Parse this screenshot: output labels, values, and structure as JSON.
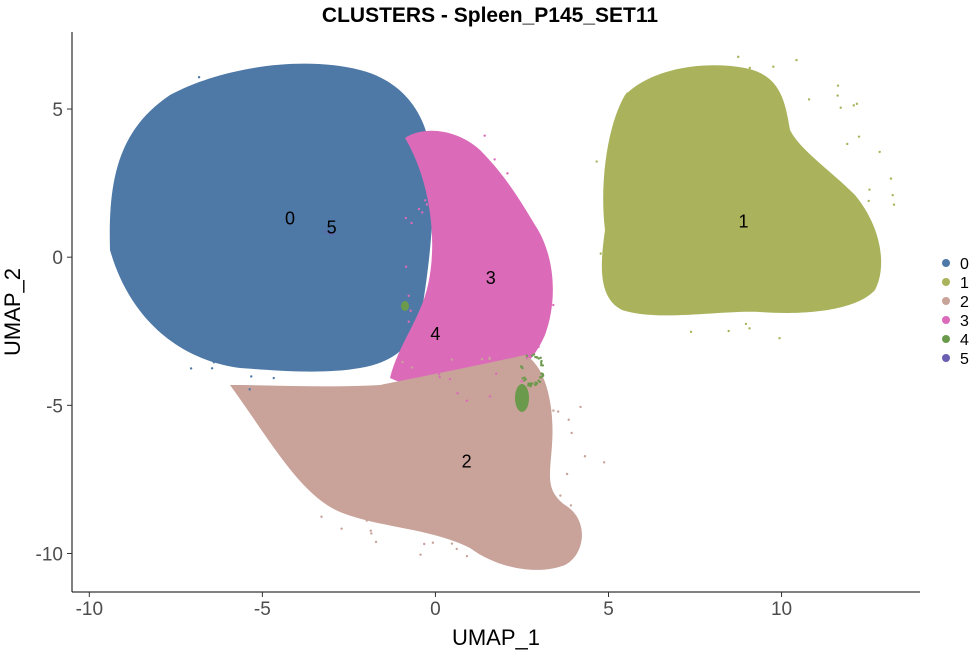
{
  "chart_data": {
    "type": "scatter",
    "title": "CLUSTERS - Spleen_P145_SET11",
    "xlabel": "UMAP_1",
    "ylabel": "UMAP_2",
    "xlim": [
      -10.5,
      14
    ],
    "ylim": [
      -11.3,
      7.6
    ],
    "x_ticks": [
      -10,
      -5,
      0,
      5,
      10
    ],
    "x_tick_labels": [
      "-10",
      "-5",
      "0",
      "5",
      "10"
    ],
    "y_ticks": [
      -10,
      -5,
      0,
      5
    ],
    "y_tick_labels": [
      "-10",
      "-5",
      "0",
      "5"
    ],
    "grid": false,
    "legend_position": "right",
    "series": [
      {
        "name": "0",
        "color": "#4e79a7",
        "label_pos": [
          -4.2,
          1.3
        ],
        "center": [
          -4.8,
          1.2
        ],
        "extent": [
          3.9,
          5.1
        ]
      },
      {
        "name": "1",
        "color": "#aab35c",
        "label_pos": [
          8.9,
          1.2
        ],
        "center": [
          8.7,
          2.0
        ],
        "extent": [
          4.0,
          4.4
        ]
      },
      {
        "name": "2",
        "color": "#c9a29a",
        "label_pos": [
          0.9,
          -6.9
        ],
        "center": [
          0.3,
          -6.6
        ],
        "extent": [
          4.0,
          3.1
        ]
      },
      {
        "name": "3",
        "color": "#db6bb9",
        "label_pos": [
          1.6,
          -0.7
        ],
        "center": [
          1.2,
          -0.4
        ],
        "extent": [
          2.0,
          4.0
        ]
      },
      {
        "name": "4",
        "color": "#6b9a4c",
        "label_pos": [
          0.0,
          -2.6
        ],
        "center": [
          2.8,
          -3.8
        ],
        "extent": [
          0.3,
          0.5
        ]
      },
      {
        "name": "5",
        "color": "#6a5fb0",
        "label_pos": [
          -3.0,
          1.0
        ],
        "center": [
          -3.0,
          1.0
        ],
        "extent": [
          0.2,
          0.2
        ]
      }
    ]
  }
}
